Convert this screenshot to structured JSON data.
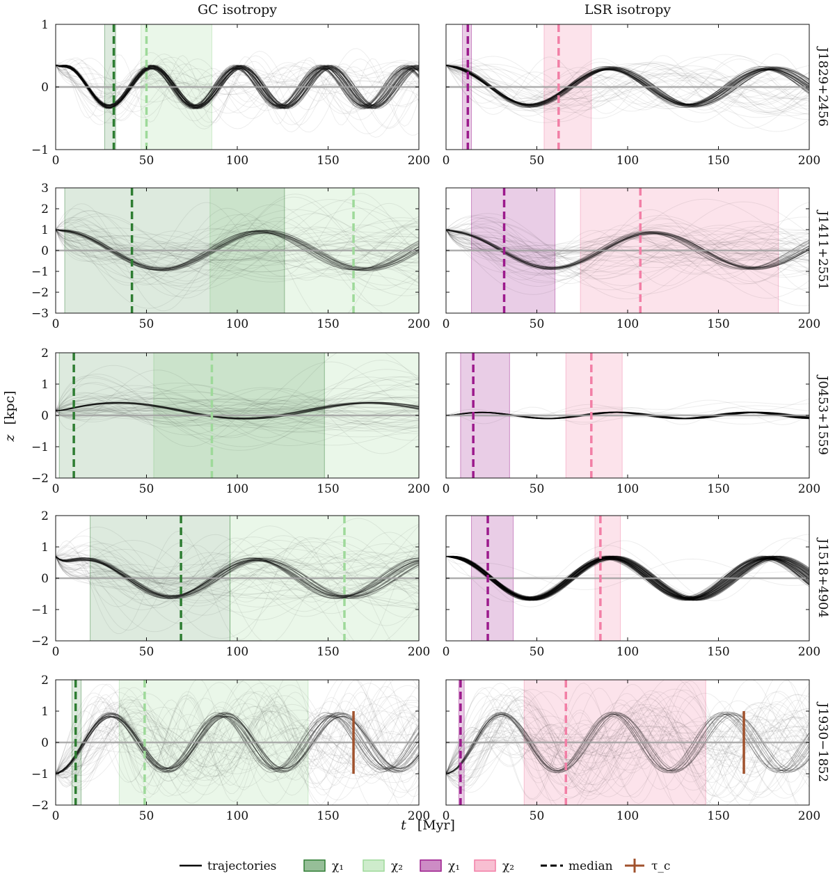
{
  "figure": {
    "column_titles": [
      "GC isotropy",
      "LSR isotropy"
    ],
    "xlabel_t": "t",
    "xlabel_unit": "[Myr]",
    "ylabel_z": "z",
    "ylabel_unit": "[kpc]"
  },
  "colors": {
    "trajectory": "#000000",
    "gc_chi1": "#2e7d32",
    "gc_chi2": "#9ed99a",
    "lsr_chi1": "#9c1a8c",
    "lsr_chi2": "#f27fa6",
    "tau_c": "#a0522d",
    "zero_line": "#a0a0a0"
  },
  "legend": [
    {
      "label": "trajectories",
      "kind": "line",
      "color": "#000000"
    },
    {
      "label": "χ₁",
      "kind": "patch",
      "color": "#2e7d32"
    },
    {
      "label": "χ₂",
      "kind": "patch",
      "color": "#9ed99a"
    },
    {
      "label": "χ₁",
      "kind": "patch",
      "color": "#9c1a8c"
    },
    {
      "label": "χ₂",
      "kind": "patch",
      "color": "#f27fa6"
    },
    {
      "label": "median",
      "kind": "dashed",
      "color": "#000000"
    },
    {
      "label": "τ_c",
      "kind": "cross",
      "color": "#a0522d"
    }
  ],
  "chart_data": [
    {
      "type": "line",
      "row": 0,
      "col": 0,
      "pulsar": "J1829+2456",
      "xlim": [
        0,
        200
      ],
      "ylim": [
        -1,
        1
      ],
      "xticks": [
        0,
        50,
        100,
        150,
        200
      ],
      "yticks": [
        -1,
        0,
        1
      ],
      "chi1": {
        "range": [
          27,
          33
        ],
        "median": 32
      },
      "chi2": {
        "range": [
          47,
          86
        ],
        "median": 50
      },
      "density": {
        "spread": 0.35,
        "amp": 0.32,
        "period": 48,
        "phase": 0.9,
        "offset": 0.0,
        "damp": 0.0,
        "sharp": 0.65
      }
    },
    {
      "type": "line",
      "row": 0,
      "col": 1,
      "pulsar": "J1829+2456",
      "xlim": [
        0,
        200
      ],
      "ylim": [
        -1,
        1
      ],
      "xticks": [
        0,
        50,
        100,
        150,
        200
      ],
      "yticks": [
        -1,
        0,
        1
      ],
      "chi1": {
        "range": [
          9,
          14
        ],
        "median": 12
      },
      "chi2": {
        "range": [
          54,
          80
        ],
        "median": 62
      },
      "density": {
        "spread": 0.22,
        "amp": 0.3,
        "period": 88,
        "phase": 1.4,
        "offset": 0.0,
        "damp": 0.0,
        "sharp": 0.45
      }
    },
    {
      "type": "line",
      "row": 1,
      "col": 0,
      "pulsar": "J1411+2551",
      "xlim": [
        0,
        200
      ],
      "ylim": [
        -3,
        3
      ],
      "xticks": [
        0,
        50,
        100,
        150,
        200
      ],
      "yticks": [
        -3,
        -2,
        -1,
        0,
        1,
        2,
        3
      ],
      "chi1": {
        "range": [
          5,
          126
        ],
        "median": 42
      },
      "chi2": {
        "range": [
          85,
          200
        ],
        "median": 164
      },
      "density": {
        "spread": 1.3,
        "amp": 0.9,
        "period": 110,
        "phase": 1.4,
        "offset": 0.0,
        "damp": 0.0,
        "sharp": 0.25
      }
    },
    {
      "type": "line",
      "row": 1,
      "col": 1,
      "pulsar": "J1411+2551",
      "xlim": [
        0,
        200
      ],
      "ylim": [
        -3,
        3
      ],
      "xticks": [
        0,
        50,
        100,
        150,
        200
      ],
      "yticks": [
        -3,
        -2,
        -1,
        0,
        1,
        2,
        3
      ],
      "chi1": {
        "range": [
          14,
          60
        ],
        "median": 32
      },
      "chi2": {
        "range": [
          74,
          183
        ],
        "median": 107
      },
      "density": {
        "spread": 0.9,
        "amp": 0.85,
        "period": 110,
        "phase": 1.4,
        "offset": 0.0,
        "damp": 0.0,
        "sharp": 0.3
      }
    },
    {
      "type": "line",
      "row": 2,
      "col": 0,
      "pulsar": "J0453+1559",
      "xlim": [
        0,
        200
      ],
      "ylim": [
        -2,
        2
      ],
      "xticks": [
        0,
        50,
        100,
        150,
        200
      ],
      "yticks": [
        -2,
        -1,
        0,
        1,
        2
      ],
      "chi1": {
        "range": [
          2,
          148
        ],
        "median": 10
      },
      "chi2": {
        "range": [
          54,
          200
        ],
        "median": 86
      },
      "density": {
        "spread": 0.8,
        "amp": 0.25,
        "period": 140,
        "phase": 0.0,
        "offset": 0.15,
        "damp": 0.0,
        "sharp": 0.2
      }
    },
    {
      "type": "line",
      "row": 2,
      "col": 1,
      "pulsar": "J0453+1559",
      "xlim": [
        0,
        200
      ],
      "ylim": [
        -2,
        2
      ],
      "xticks": [
        0,
        50,
        100,
        150,
        200
      ],
      "yticks": [
        -2,
        -1,
        0,
        1,
        2
      ],
      "chi1": {
        "range": [
          8,
          35
        ],
        "median": 15
      },
      "chi2": {
        "range": [
          66,
          97
        ],
        "median": 80
      },
      "density": {
        "spread": 0.35,
        "amp": 0.1,
        "period": 75,
        "phase": 0.0,
        "offset": 0.0,
        "damp": 0.0,
        "sharp": 0.85
      }
    },
    {
      "type": "line",
      "row": 3,
      "col": 0,
      "pulsar": "J1518+4904",
      "xlim": [
        0,
        200
      ],
      "ylim": [
        -2,
        2
      ],
      "xticks": [
        0,
        50,
        100,
        150,
        200
      ],
      "yticks": [
        -2,
        -1,
        0,
        1,
        2
      ],
      "chi1": {
        "range": [
          19,
          96
        ],
        "median": 69
      },
      "chi2": {
        "range": [
          96,
          200
        ],
        "median": 159
      },
      "density": {
        "spread": 1.1,
        "amp": 0.6,
        "period": 95,
        "phase": 0.5,
        "offset": 0.0,
        "damp": 0.0,
        "sharp": 0.35
      }
    },
    {
      "type": "line",
      "row": 3,
      "col": 1,
      "pulsar": "J1518+4904",
      "xlim": [
        0,
        200
      ],
      "ylim": [
        -2,
        2
      ],
      "xticks": [
        0,
        50,
        100,
        150,
        200
      ],
      "yticks": [
        -2,
        -1,
        0,
        1,
        2
      ],
      "chi1": {
        "range": [
          14,
          37
        ],
        "median": 23
      },
      "chi2": {
        "range": [
          82,
          96
        ],
        "median": 85
      },
      "density": {
        "spread": 0.55,
        "amp": 0.65,
        "period": 88,
        "phase": 1.4,
        "offset": 0.0,
        "damp": 0.0,
        "sharp": 0.9
      }
    },
    {
      "type": "line",
      "row": 4,
      "col": 0,
      "pulsar": "J1930−1852",
      "xlim": [
        0,
        200
      ],
      "ylim": [
        -2,
        2
      ],
      "xticks": [
        0,
        50,
        100,
        150,
        200
      ],
      "yticks": [
        -2,
        -1,
        0,
        1,
        2
      ],
      "chi1": {
        "range": [
          9,
          14
        ],
        "median": 11
      },
      "chi2": {
        "range": [
          35,
          139
        ],
        "median": 49
      },
      "tau_c": {
        "t": 164,
        "z": [
          -1,
          1
        ]
      },
      "density": {
        "spread": 0.9,
        "amp": 0.9,
        "period": 62,
        "phase": -1.5,
        "offset": 0.0,
        "damp": 0.0,
        "sharp": 0.3
      }
    },
    {
      "type": "line",
      "row": 4,
      "col": 1,
      "pulsar": "J1930−1852",
      "xlim": [
        0,
        200
      ],
      "ylim": [
        -2,
        2
      ],
      "xticks": [
        0,
        50,
        100,
        150,
        200
      ],
      "yticks": [
        -2,
        -1,
        0,
        1,
        2
      ],
      "chi1": {
        "range": [
          7,
          10
        ],
        "median": 8
      },
      "chi2": {
        "range": [
          43,
          143
        ],
        "median": 66
      },
      "tau_c": {
        "t": 164,
        "z": [
          -1,
          1
        ]
      },
      "density": {
        "spread": 0.9,
        "amp": 0.9,
        "period": 62,
        "phase": -1.5,
        "offset": 0.0,
        "damp": 0.0,
        "sharp": 0.3
      }
    }
  ]
}
